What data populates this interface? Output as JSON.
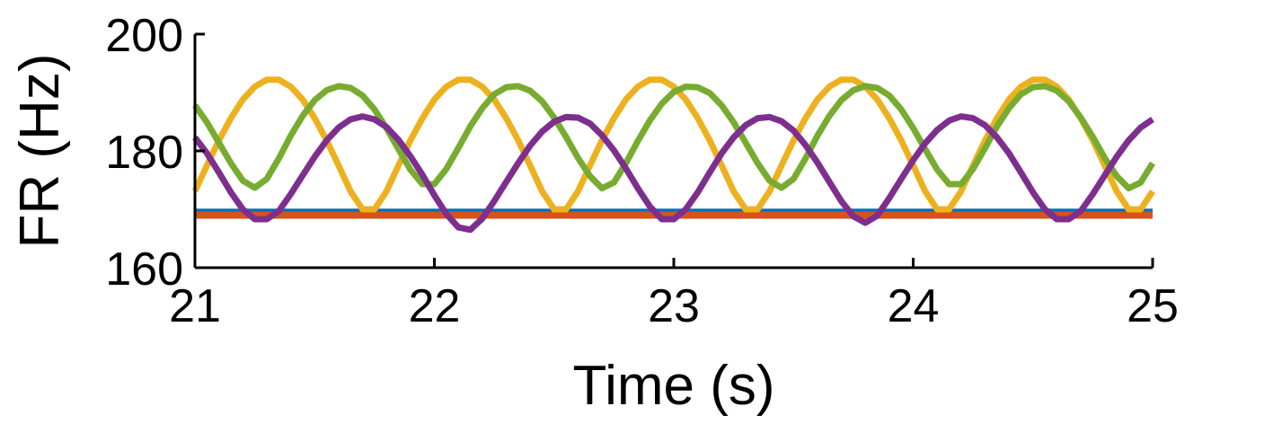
{
  "chart_data": {
    "type": "line",
    "title": "",
    "xlabel": "Time (s)",
    "ylabel": "FR (Hz)",
    "xlim": [
      21,
      25
    ],
    "ylim": [
      160,
      200
    ],
    "xticks": [
      21,
      22,
      23,
      24,
      25
    ],
    "yticks": [
      160,
      180,
      200
    ],
    "xtick_labels": [
      "21",
      "22",
      "23",
      "24",
      "25"
    ],
    "ytick_labels": [
      "160",
      "180",
      "200"
    ],
    "grid": false,
    "legend": "none",
    "series": [
      {
        "name": "blue-flat",
        "color": "#0072BD",
        "x": [
          21,
          25
        ],
        "y": [
          169.8,
          169.8
        ]
      },
      {
        "name": "orange-flat",
        "color": "#D95319",
        "x": [
          21,
          25
        ],
        "y": [
          169.0,
          169.0
        ]
      },
      {
        "name": "yellow",
        "color": "#EDB120",
        "x": [
          21.0,
          21.05,
          21.1,
          21.15,
          21.2,
          21.25,
          21.3,
          21.35,
          21.4,
          21.45,
          21.5,
          21.55,
          21.6,
          21.65,
          21.7,
          21.75,
          21.8,
          21.85,
          21.9,
          21.95,
          22.0,
          22.05,
          22.1,
          22.15,
          22.2,
          22.25,
          22.3,
          22.35,
          22.4,
          22.45,
          22.5,
          22.55,
          22.6,
          22.65,
          22.7,
          22.75,
          22.8,
          22.85,
          22.9,
          22.95,
          23.0,
          23.05,
          23.1,
          23.15,
          23.2,
          23.25,
          23.3,
          23.35,
          23.4,
          23.45,
          23.5,
          23.55,
          23.6,
          23.65,
          23.7,
          23.75,
          23.8,
          23.85,
          23.9,
          23.95,
          24.0,
          24.05,
          24.1,
          24.15,
          24.2,
          24.25,
          24.3,
          24.35,
          24.4,
          24.45,
          24.5,
          24.55,
          24.6,
          24.65,
          24.7,
          24.75,
          24.8,
          24.85,
          24.9,
          24.95,
          25.0
        ],
        "y": [
          173.1,
          177.5,
          181.8,
          185.6,
          188.8,
          191.0,
          192.2,
          192.2,
          191.0,
          188.8,
          185.6,
          181.8,
          177.5,
          173.1,
          170.0,
          170.0,
          173.1,
          177.5,
          181.8,
          185.6,
          188.8,
          191.0,
          192.2,
          192.2,
          191.0,
          188.8,
          185.6,
          181.8,
          177.5,
          173.1,
          170.0,
          170.0,
          173.1,
          177.5,
          181.8,
          185.6,
          188.8,
          191.0,
          192.2,
          192.2,
          191.0,
          188.8,
          185.6,
          181.8,
          177.5,
          173.1,
          170.0,
          170.0,
          173.1,
          177.5,
          181.8,
          185.6,
          188.8,
          191.0,
          192.2,
          192.2,
          191.0,
          188.8,
          185.6,
          181.8,
          177.5,
          173.1,
          170.0,
          170.0,
          173.1,
          177.5,
          181.8,
          185.6,
          188.8,
          191.0,
          192.2,
          192.2,
          191.0,
          188.8,
          185.6,
          181.8,
          177.5,
          173.1,
          170.0,
          170.0,
          173.1
        ]
      },
      {
        "name": "green",
        "color": "#77AC30",
        "x": [
          21.0,
          21.05,
          21.1,
          21.15,
          21.2,
          21.25,
          21.3,
          21.35,
          21.4,
          21.45,
          21.5,
          21.55,
          21.6,
          21.65,
          21.7,
          21.75,
          21.8,
          21.85,
          21.9,
          21.95,
          22.0,
          22.05,
          22.1,
          22.15,
          22.2,
          22.25,
          22.3,
          22.35,
          22.4,
          22.45,
          22.5,
          22.55,
          22.6,
          22.65,
          22.7,
          22.75,
          22.8,
          22.85,
          22.9,
          22.95,
          23.0,
          23.05,
          23.1,
          23.15,
          23.2,
          23.25,
          23.3,
          23.35,
          23.4,
          23.45,
          23.5,
          23.55,
          23.6,
          23.65,
          23.7,
          23.75,
          23.8,
          23.85,
          23.9,
          23.95,
          24.0,
          24.05,
          24.1,
          24.15,
          24.2,
          24.25,
          24.3,
          24.35,
          24.4,
          24.45,
          24.5,
          24.55,
          24.6,
          24.65,
          24.7,
          24.75,
          24.8,
          24.85,
          24.9,
          24.95,
          25.0
        ],
        "y": [
          187.8,
          184.9,
          181.4,
          177.9,
          174.9,
          173.7,
          175.2,
          178.7,
          182.6,
          186.0,
          188.7,
          190.4,
          191.1,
          190.8,
          189.5,
          187.1,
          183.9,
          180.3,
          176.8,
          174.3,
          174.3,
          176.9,
          180.5,
          184.2,
          187.3,
          189.7,
          190.9,
          191.1,
          190.3,
          188.5,
          185.7,
          182.4,
          178.8,
          175.7,
          173.6,
          174.6,
          177.9,
          181.7,
          185.2,
          188.1,
          190.1,
          191.0,
          190.9,
          189.9,
          187.8,
          184.9,
          181.4,
          177.9,
          174.9,
          173.7,
          175.2,
          178.7,
          182.6,
          186.0,
          188.7,
          190.4,
          191.1,
          190.8,
          189.5,
          187.1,
          183.9,
          180.3,
          176.8,
          174.3,
          174.3,
          176.9,
          180.5,
          184.2,
          187.3,
          189.7,
          190.9,
          191.1,
          190.3,
          188.5,
          185.7,
          182.4,
          178.8,
          175.7,
          173.6,
          174.6,
          177.9
        ]
      },
      {
        "name": "purple",
        "color": "#7E2F8E",
        "x": [
          21.0,
          21.05,
          21.1,
          21.15,
          21.2,
          21.25,
          21.3,
          21.35,
          21.4,
          21.45,
          21.5,
          21.55,
          21.6,
          21.65,
          21.7,
          21.75,
          21.8,
          21.85,
          21.9,
          21.95,
          22.0,
          22.05,
          22.1,
          22.15,
          22.2,
          22.25,
          22.3,
          22.35,
          22.4,
          22.45,
          22.5,
          22.55,
          22.6,
          22.65,
          22.7,
          22.75,
          22.8,
          22.85,
          22.9,
          22.95,
          23.0,
          23.05,
          23.1,
          23.15,
          23.2,
          23.25,
          23.3,
          23.35,
          23.4,
          23.45,
          23.5,
          23.55,
          23.6,
          23.65,
          23.7,
          23.75,
          23.8,
          23.85,
          23.9,
          23.95,
          24.0,
          24.05,
          24.1,
          24.15,
          24.2,
          24.25,
          24.3,
          24.35,
          24.4,
          24.45,
          24.5,
          24.55,
          24.6,
          24.65,
          24.7,
          24.75,
          24.8,
          24.85,
          24.9,
          24.95,
          25.0
        ],
        "y": [
          182.3,
          179.6,
          176.3,
          172.9,
          170.0,
          168.3,
          168.3,
          169.7,
          172.6,
          175.8,
          179.0,
          181.8,
          184.0,
          185.4,
          185.9,
          185.4,
          184.1,
          181.9,
          179.1,
          175.9,
          172.4,
          169.2,
          166.9,
          166.5,
          168.4,
          171.4,
          174.7,
          177.9,
          180.9,
          183.3,
          185.0,
          185.8,
          185.7,
          184.7,
          182.7,
          180.1,
          177.0,
          173.6,
          170.5,
          168.3,
          168.3,
          170.0,
          172.9,
          176.3,
          179.6,
          182.3,
          184.4,
          185.6,
          185.8,
          185.1,
          183.5,
          181.0,
          178.0,
          174.7,
          171.4,
          168.8,
          167.7,
          168.9,
          171.9,
          175.2,
          178.4,
          181.3,
          183.6,
          185.2,
          185.9,
          185.6,
          184.4,
          182.3,
          179.6,
          176.3,
          172.9,
          170.0,
          168.3,
          168.3,
          169.7,
          172.6,
          175.8,
          179.0,
          181.8,
          184.0,
          185.4
        ]
      }
    ]
  }
}
